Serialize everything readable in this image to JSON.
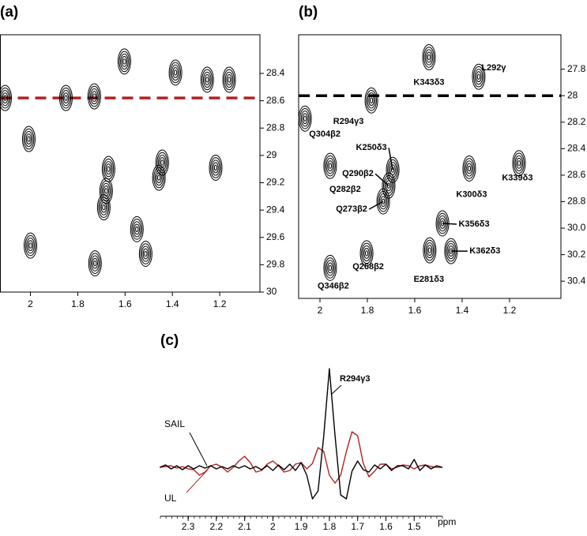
{
  "chart_data": [
    {
      "type": "contour",
      "panel": "(a)",
      "xlim": [
        2.127,
        1.03
      ],
      "xticks": [
        2.0,
        1.8,
        1.6,
        1.4,
        1.2
      ],
      "ylim": [
        28.117,
        30.0
      ],
      "yticks": [
        28.4,
        28.6,
        28.8,
        29.0,
        29.2,
        29.4,
        29.6,
        29.8,
        30.0
      ],
      "reference_line": 28.58,
      "reference_color": "#b22222",
      "peaks": [
        {
          "x": 1.603,
          "y": 28.313
        },
        {
          "x": 1.387,
          "y": 28.394
        },
        {
          "x": 1.253,
          "y": 28.446
        },
        {
          "x": 1.16,
          "y": 28.446
        },
        {
          "x": 2.107,
          "y": 28.58
        },
        {
          "x": 1.85,
          "y": 28.58
        },
        {
          "x": 1.73,
          "y": 28.568
        },
        {
          "x": 2.007,
          "y": 28.88
        },
        {
          "x": 1.67,
          "y": 29.1
        },
        {
          "x": 1.68,
          "y": 29.26
        },
        {
          "x": 1.69,
          "y": 29.38
        },
        {
          "x": 1.457,
          "y": 29.163
        },
        {
          "x": 1.55,
          "y": 29.54
        },
        {
          "x": 2.0,
          "y": 29.66
        },
        {
          "x": 1.513,
          "y": 29.72
        },
        {
          "x": 1.727,
          "y": 29.79
        },
        {
          "x": 1.443,
          "y": 29.053
        },
        {
          "x": 1.217,
          "y": 29.09
        }
      ]
    },
    {
      "type": "contour",
      "panel": "(b)",
      "xlim": [
        2.09,
        0.983
      ],
      "xticks": [
        2.0,
        1.8,
        1.6,
        1.4,
        1.2
      ],
      "ylim": [
        27.54,
        29.53
      ],
      "yticks": [
        27.8,
        28.0,
        28.2,
        28.4,
        28.6,
        28.8,
        {
          "value": 29.0,
          "label": "30.0"
        },
        {
          "value": 29.2,
          "label": "30.2"
        },
        {
          "value": 29.4,
          "label": "30.4"
        }
      ],
      "reference_line": 28.0,
      "reference_color": "#000000",
      "peaks": [
        {
          "x": 1.54,
          "y": 27.71,
          "label": "K343δ3"
        },
        {
          "x": 1.33,
          "y": 27.857,
          "label": "L292γ"
        },
        {
          "x": 1.783,
          "y": 28.036,
          "label": "R294γ3"
        },
        {
          "x": 2.063,
          "y": 28.173,
          "label": "Q304β2"
        },
        {
          "x": 1.957,
          "y": 28.53,
          "label": "Q282β2"
        },
        {
          "x": 1.693,
          "y": 28.56,
          "label": "K250δ3"
        },
        {
          "x": 1.71,
          "y": 28.679,
          "label": "Q290β2"
        },
        {
          "x": 1.733,
          "y": 28.798,
          "label": "Q273β2"
        },
        {
          "x": 1.37,
          "y": 28.55,
          "label": "K300δ3"
        },
        {
          "x": 1.16,
          "y": 28.51,
          "label": "K339δ3"
        },
        {
          "x": 1.483,
          "y": 28.964,
          "label": "K356δ3"
        },
        {
          "x": 1.447,
          "y": 29.173,
          "label": "K362δ3"
        },
        {
          "x": 1.803,
          "y": 29.19,
          "label": "Q268β2"
        },
        {
          "x": 1.537,
          "y": 29.167,
          "label": "E281δ3"
        },
        {
          "x": 1.957,
          "y": 29.3,
          "label": "Q346β2"
        }
      ]
    },
    {
      "type": "line",
      "panel": "(c)",
      "xlabel": "ppm",
      "annotation": "R294γ3",
      "xlim": [
        2.398,
        1.4
      ],
      "xticks": [
        2.3,
        2.2,
        2.1,
        2.0,
        1.9,
        1.8,
        1.7,
        1.6,
        1.5
      ],
      "x": [
        2.4,
        2.38,
        2.36,
        2.34,
        2.32,
        2.3,
        2.28,
        2.26,
        2.24,
        2.22,
        2.2,
        2.18,
        2.16,
        2.14,
        2.12,
        2.1,
        2.08,
        2.06,
        2.04,
        2.02,
        2.0,
        1.98,
        1.96,
        1.94,
        1.92,
        1.9,
        1.88,
        1.86,
        1.84,
        1.82,
        1.8,
        1.78,
        1.76,
        1.74,
        1.72,
        1.7,
        1.68,
        1.66,
        1.64,
        1.62,
        1.6,
        1.58,
        1.56,
        1.54,
        1.52,
        1.5,
        1.48,
        1.46,
        1.44,
        1.42,
        1.4
      ],
      "series": [
        {
          "name": "SAIL",
          "color": "#000000",
          "values": [
            0,
            3,
            -2,
            2,
            -3,
            2,
            -2,
            2,
            -1,
            2,
            -2,
            1,
            -2,
            2,
            -1,
            2,
            -2,
            1,
            -3,
            2,
            -4,
            3,
            -3,
            4,
            -4,
            6,
            -10,
            -40,
            -30,
            40,
            125,
            40,
            -35,
            -40,
            -5,
            8,
            -3,
            -6,
            3,
            -2,
            4,
            -4,
            2,
            2,
            -2,
            10,
            -4,
            3,
            -2,
            2,
            0
          ]
        },
        {
          "name": "UL",
          "color": "#b22222",
          "values": [
            0,
            1,
            2,
            -1,
            1,
            -2,
            -3,
            -10,
            -6,
            2,
            4,
            0,
            -6,
            0,
            8,
            14,
            6,
            -6,
            -4,
            4,
            8,
            2,
            -6,
            -4,
            4,
            6,
            -2,
            5,
            25,
            20,
            -10,
            -20,
            -10,
            20,
            45,
            40,
            5,
            -12,
            -5,
            4,
            4,
            -2,
            0,
            3,
            2,
            -2,
            2,
            3,
            1,
            0,
            0
          ]
        }
      ]
    }
  ]
}
